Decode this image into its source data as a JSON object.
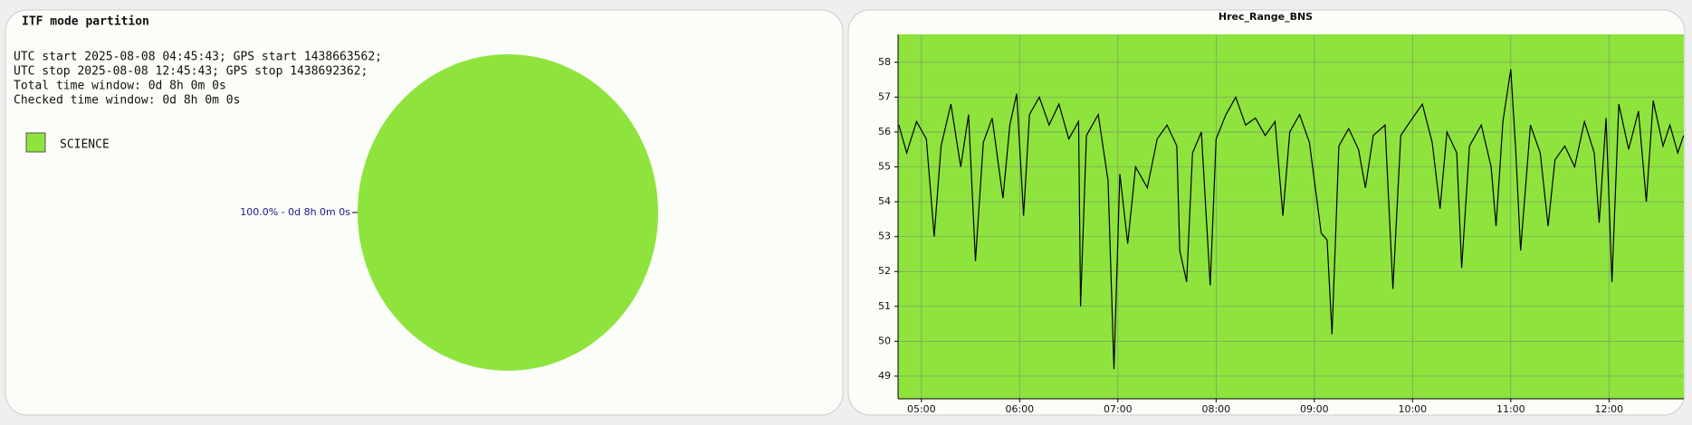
{
  "chart_data": [
    {
      "type": "pie",
      "title": "ITF mode partition",
      "info": [
        "UTC start 2025-08-08 04:45:43; GPS start 1438663562;",
        "UTC stop 2025-08-08 12:45:43; GPS stop 1438692362;",
        "Total time window: 0d 8h 0m 0s",
        "Checked time window: 0d 8h 0m 0s"
      ],
      "categories": [
        "SCIENCE"
      ],
      "values": [
        100
      ],
      "value_labels": [
        "100.0% - 0d 8h 0m 0s"
      ],
      "colors": [
        "#8ee43c"
      ]
    },
    {
      "type": "line",
      "title": "Hrec_Range_BNS",
      "x": [
        4.77,
        4.85,
        4.95,
        5.05,
        5.13,
        5.2,
        5.3,
        5.4,
        5.48,
        5.55,
        5.63,
        5.72,
        5.83,
        5.9,
        5.97,
        6.04,
        6.1,
        6.2,
        6.3,
        6.4,
        6.5,
        6.6,
        6.62,
        6.68,
        6.8,
        6.9,
        6.96,
        7.02,
        7.1,
        7.18,
        7.3,
        7.4,
        7.5,
        7.6,
        7.63,
        7.7,
        7.76,
        7.85,
        7.94,
        8.0,
        8.1,
        8.2,
        8.3,
        8.4,
        8.5,
        8.6,
        8.68,
        8.75,
        8.85,
        8.95,
        9.07,
        9.13,
        9.18,
        9.25,
        9.35,
        9.45,
        9.52,
        9.6,
        9.72,
        9.8,
        9.88,
        10.0,
        10.1,
        10.2,
        10.28,
        10.35,
        10.45,
        10.5,
        10.58,
        10.7,
        10.8,
        10.85,
        10.92,
        11.0,
        11.05,
        11.1,
        11.2,
        11.3,
        11.38,
        11.45,
        11.55,
        11.65,
        11.75,
        11.85,
        11.9,
        11.97,
        12.03,
        12.1,
        12.2,
        12.3,
        12.38,
        12.45,
        12.55,
        12.62,
        12.7,
        12.76
      ],
      "series": [
        {
          "color": "#000000",
          "values": [
            56.2,
            55.4,
            56.3,
            55.8,
            53.0,
            55.6,
            56.8,
            55.0,
            56.5,
            52.3,
            55.7,
            56.4,
            54.1,
            56.2,
            57.1,
            53.6,
            56.5,
            57.0,
            56.2,
            56.8,
            55.8,
            56.3,
            51.0,
            55.9,
            56.5,
            54.6,
            49.2,
            54.8,
            52.8,
            55.0,
            54.4,
            55.8,
            56.2,
            55.6,
            52.6,
            51.7,
            55.4,
            56.0,
            51.6,
            55.8,
            56.5,
            57.0,
            56.2,
            56.4,
            55.9,
            56.3,
            53.6,
            56.0,
            56.5,
            55.7,
            53.1,
            52.9,
            50.2,
            55.6,
            56.1,
            55.5,
            54.4,
            55.9,
            56.2,
            51.5,
            55.9,
            56.4,
            56.8,
            55.7,
            53.8,
            56.0,
            55.4,
            52.1,
            55.6,
            56.2,
            55.0,
            53.3,
            56.3,
            57.8,
            55.5,
            52.6,
            56.2,
            55.4,
            53.3,
            55.2,
            55.6,
            55.0,
            56.3,
            55.4,
            53.4,
            56.4,
            51.7,
            56.8,
            55.5,
            56.6,
            54.0,
            56.9,
            55.6,
            56.2,
            55.4,
            55.9
          ]
        }
      ],
      "xlim": [
        4.762,
        12.762
      ],
      "xticks": [
        {
          "value": 5,
          "label": "05:00"
        },
        {
          "value": 6,
          "label": "06:00"
        },
        {
          "value": 7,
          "label": "07:00"
        },
        {
          "value": 8,
          "label": "08:00"
        },
        {
          "value": 9,
          "label": "09:00"
        },
        {
          "value": 10,
          "label": "10:00"
        },
        {
          "value": 11,
          "label": "11:00"
        },
        {
          "value": 12,
          "label": "12:00"
        }
      ],
      "ylim": [
        48.35,
        58.8
      ],
      "yticks": [
        49,
        50,
        51,
        52,
        53,
        54,
        55,
        56,
        57,
        58
      ],
      "grid": true,
      "background": "#8ee43c"
    }
  ]
}
